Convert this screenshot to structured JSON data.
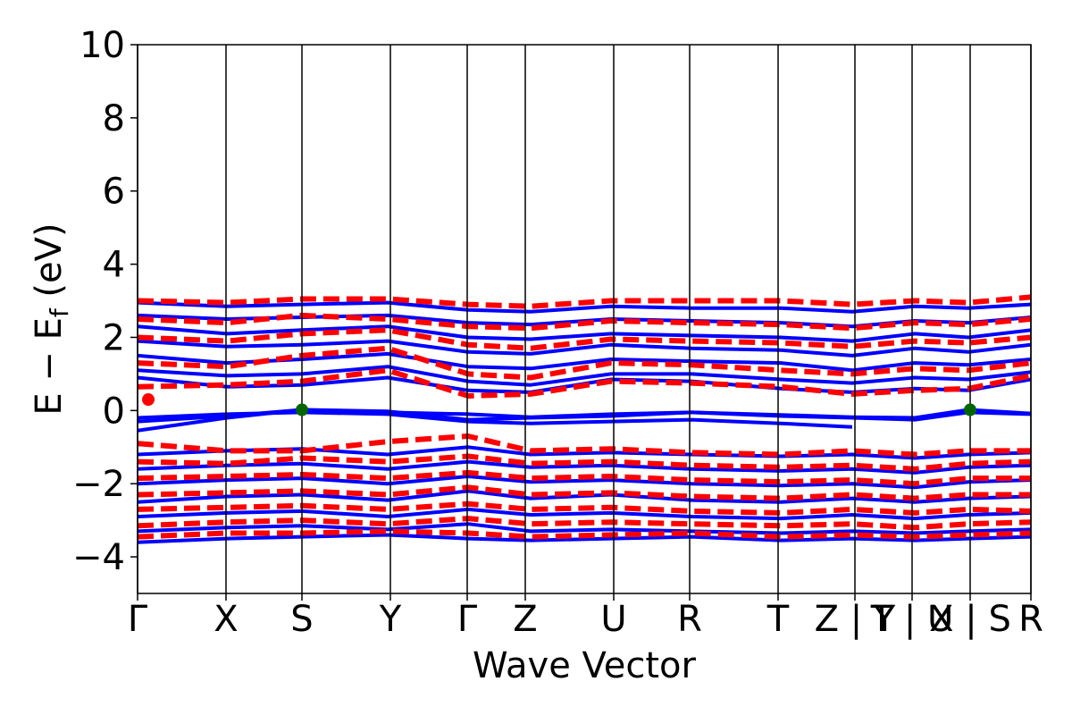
{
  "chart_data": {
    "type": "line",
    "title": "",
    "xlabel": "Wave Vector",
    "ylabel": {
      "main": "E − E",
      "subscript": "f",
      "unit": " (eV)"
    },
    "ylim": [
      -5,
      10
    ],
    "yticks": [
      -4,
      -2,
      0,
      2,
      4,
      6,
      8,
      10
    ],
    "ytick_labels": [
      "−4",
      "−2",
      "0",
      "2",
      "4",
      "6",
      "8",
      "10"
    ],
    "xlim": [
      0,
      1
    ],
    "kpoint_labels": [
      {
        "label": "Γ",
        "x": 0.0
      },
      {
        "label": "X",
        "x": 0.099
      },
      {
        "label": "S",
        "x": 0.184
      },
      {
        "label": "Y",
        "x": 0.283
      },
      {
        "label": "Γ",
        "x": 0.369
      },
      {
        "label": "Z",
        "x": 0.434
      },
      {
        "label": "U",
        "x": 0.533
      },
      {
        "label": "R",
        "x": 0.618
      },
      {
        "label": "T",
        "x": 0.717
      },
      {
        "label": "Z | Y",
        "x": 0.803
      },
      {
        "label": "T | U",
        "x": 0.867
      },
      {
        "label": "X | S",
        "x": 0.932
      },
      {
        "label": "R",
        "x": 1.0
      }
    ],
    "grid": false,
    "series": [
      {
        "style": "solid",
        "color": "#0000ff",
        "bands": [
          {
            "x": [
              0,
              0.1,
              0.184,
              0.28,
              0.37,
              0.44,
              0.53,
              0.62,
              0.72,
              0.8,
              0.87,
              0.93,
              1
            ],
            "y": [
              -0.55,
              -0.2,
              0.02,
              -0.05,
              -0.1,
              -0.18,
              -0.1,
              -0.05,
              -0.12,
              -0.18,
              -0.2,
              0.02,
              -0.08
            ]
          },
          {
            "x": [
              0,
              0.1,
              0.184,
              0.28,
              0.37,
              0.44,
              0.53,
              0.62,
              0.72,
              0.8,
              0.87,
              0.93,
              1
            ],
            "y": [
              -0.3,
              -0.15,
              0.02,
              -0.02,
              -0.25,
              -0.2,
              -0.15,
              -0.05,
              -0.15,
              -0.2,
              -0.25,
              -0.05,
              -0.1
            ]
          },
          {
            "x": [
              0,
              0.1,
              0.184,
              0.28,
              0.37,
              0.44,
              0.53,
              0.62,
              0.72,
              0.8
            ],
            "y": [
              -0.2,
              -0.1,
              -0.05,
              -0.1,
              -0.3,
              -0.35,
              -0.3,
              -0.25,
              -0.35,
              -0.45
            ]
          },
          {
            "x": [
              0,
              0.1,
              0.184,
              0.28,
              0.37,
              0.44,
              0.53,
              0.62,
              0.72,
              0.8,
              0.87,
              0.93,
              1
            ],
            "y": [
              0.9,
              0.65,
              0.7,
              0.9,
              0.55,
              0.5,
              0.85,
              0.8,
              0.6,
              0.5,
              0.6,
              0.55,
              0.85
            ]
          },
          {
            "x": [
              0,
              0.1,
              0.184,
              0.28,
              0.37,
              0.44,
              0.53,
              0.62,
              0.72,
              0.8,
              0.87,
              0.93,
              1
            ],
            "y": [
              1.1,
              0.95,
              1.0,
              1.2,
              0.8,
              0.7,
              1.0,
              1.0,
              0.85,
              0.75,
              0.9,
              0.85,
              1.05
            ]
          },
          {
            "x": [
              0,
              0.1,
              0.184,
              0.28,
              0.37,
              0.44,
              0.53,
              0.62,
              0.72,
              0.8,
              0.87,
              0.93,
              1
            ],
            "y": [
              1.5,
              1.3,
              1.4,
              1.55,
              1.2,
              1.15,
              1.4,
              1.35,
              1.3,
              1.1,
              1.3,
              1.25,
              1.4
            ]
          },
          {
            "x": [
              0,
              0.1,
              0.184,
              0.28,
              0.37,
              0.44,
              0.53,
              0.62,
              0.72,
              0.8,
              0.87,
              0.93,
              1
            ],
            "y": [
              1.9,
              1.75,
              1.8,
              1.9,
              1.6,
              1.55,
              1.8,
              1.7,
              1.65,
              1.5,
              1.7,
              1.6,
              1.8
            ]
          },
          {
            "x": [
              0,
              0.1,
              0.184,
              0.28,
              0.37,
              0.44,
              0.53,
              0.62,
              0.72,
              0.8,
              0.87,
              0.93,
              1
            ],
            "y": [
              2.3,
              2.1,
              2.2,
              2.3,
              2.0,
              1.95,
              2.1,
              2.05,
              2.0,
              1.9,
              2.1,
              2.0,
              2.2
            ]
          },
          {
            "x": [
              0,
              0.1,
              0.184,
              0.28,
              0.37,
              0.44,
              0.53,
              0.62,
              0.72,
              0.8,
              0.87,
              0.93,
              1
            ],
            "y": [
              2.6,
              2.5,
              2.55,
              2.6,
              2.4,
              2.35,
              2.5,
              2.45,
              2.4,
              2.3,
              2.45,
              2.4,
              2.55
            ]
          },
          {
            "x": [
              0,
              0.1,
              0.184,
              0.28,
              0.37,
              0.44,
              0.53,
              0.62,
              0.72,
              0.8,
              0.87,
              0.93,
              1
            ],
            "y": [
              2.95,
              2.85,
              2.9,
              2.95,
              2.75,
              2.7,
              2.85,
              2.8,
              2.8,
              2.7,
              2.85,
              2.8,
              2.9
            ]
          },
          {
            "x": [
              0,
              0.1,
              0.184,
              0.28,
              0.37,
              0.44,
              0.53,
              0.62,
              0.72,
              0.8,
              0.87,
              0.93,
              1
            ],
            "y": [
              -1.2,
              -1.1,
              -1.05,
              -1.2,
              -1.0,
              -1.2,
              -1.15,
              -1.2,
              -1.25,
              -1.2,
              -1.3,
              -1.2,
              -1.15
            ]
          },
          {
            "x": [
              0,
              0.1,
              0.184,
              0.28,
              0.37,
              0.44,
              0.53,
              0.62,
              0.72,
              0.8,
              0.87,
              0.93,
              1
            ],
            "y": [
              -1.6,
              -1.5,
              -1.45,
              -1.6,
              -1.4,
              -1.55,
              -1.5,
              -1.6,
              -1.65,
              -1.6,
              -1.7,
              -1.55,
              -1.5
            ]
          },
          {
            "x": [
              0,
              0.1,
              0.184,
              0.28,
              0.37,
              0.44,
              0.53,
              0.62,
              0.72,
              0.8,
              0.87,
              0.93,
              1
            ],
            "y": [
              -2.0,
              -1.9,
              -1.85,
              -2.0,
              -1.8,
              -1.95,
              -1.9,
              -2.0,
              -2.05,
              -2.0,
              -2.1,
              -1.95,
              -1.9
            ]
          },
          {
            "x": [
              0,
              0.1,
              0.184,
              0.28,
              0.37,
              0.44,
              0.53,
              0.62,
              0.72,
              0.8,
              0.87,
              0.93,
              1
            ],
            "y": [
              -2.5,
              -2.35,
              -2.3,
              -2.45,
              -2.2,
              -2.4,
              -2.3,
              -2.45,
              -2.5,
              -2.4,
              -2.5,
              -2.4,
              -2.35
            ]
          },
          {
            "x": [
              0,
              0.1,
              0.184,
              0.28,
              0.37,
              0.44,
              0.53,
              0.62,
              0.72,
              0.8,
              0.87,
              0.93,
              1
            ],
            "y": [
              -2.9,
              -2.8,
              -2.75,
              -2.9,
              -2.7,
              -2.85,
              -2.8,
              -2.9,
              -2.95,
              -2.85,
              -2.95,
              -2.85,
              -2.8
            ]
          },
          {
            "x": [
              0,
              0.1,
              0.184,
              0.28,
              0.37,
              0.44,
              0.53,
              0.62,
              0.72,
              0.8,
              0.87,
              0.93,
              1
            ],
            "y": [
              -3.3,
              -3.2,
              -3.15,
              -3.25,
              -3.1,
              -3.3,
              -3.25,
              -3.3,
              -3.35,
              -3.3,
              -3.35,
              -3.3,
              -3.25
            ]
          },
          {
            "x": [
              0,
              0.1,
              0.184,
              0.28,
              0.37,
              0.44,
              0.53,
              0.62,
              0.72,
              0.8,
              0.87,
              0.93,
              1
            ],
            "y": [
              -3.6,
              -3.5,
              -3.45,
              -3.4,
              -3.5,
              -3.55,
              -3.5,
              -3.45,
              -3.55,
              -3.5,
              -3.55,
              -3.5,
              -3.45
            ]
          }
        ]
      },
      {
        "style": "dashed",
        "color": "#ff0000",
        "bands": [
          {
            "x": [
              0,
              0.1,
              0.184,
              0.28,
              0.37,
              0.44,
              0.53,
              0.62,
              0.72,
              0.8,
              0.87,
              0.93,
              1
            ],
            "y": [
              0.65,
              0.7,
              0.8,
              1.1,
              0.4,
              0.45,
              0.8,
              0.75,
              0.65,
              0.45,
              0.55,
              0.6,
              0.95
            ]
          },
          {
            "x": [
              0,
              0.1,
              0.184,
              0.28,
              0.37,
              0.44,
              0.53,
              0.62,
              0.72,
              0.8,
              0.87,
              0.93,
              1
            ],
            "y": [
              1.3,
              1.2,
              1.5,
              1.7,
              1.0,
              0.9,
              1.3,
              1.25,
              1.1,
              1.0,
              1.15,
              1.1,
              1.3
            ]
          },
          {
            "x": [
              0,
              0.1,
              0.184,
              0.28,
              0.37,
              0.44,
              0.53,
              0.62,
              0.72,
              0.8,
              0.87,
              0.93,
              1
            ],
            "y": [
              2.0,
              1.9,
              2.1,
              2.2,
              1.8,
              1.7,
              1.95,
              1.9,
              1.85,
              1.75,
              1.9,
              1.85,
              2.0
            ]
          },
          {
            "x": [
              0,
              0.1,
              0.184,
              0.28,
              0.37,
              0.44,
              0.53,
              0.62,
              0.72,
              0.8,
              0.87,
              0.93,
              1
            ],
            "y": [
              2.5,
              2.4,
              2.6,
              2.5,
              2.3,
              2.25,
              2.45,
              2.4,
              2.35,
              2.25,
              2.4,
              2.35,
              2.5
            ]
          },
          {
            "x": [
              0,
              0.1,
              0.184,
              0.28,
              0.37,
              0.44,
              0.53,
              0.62,
              0.72,
              0.8,
              0.87,
              0.93,
              1
            ],
            "y": [
              3.0,
              2.95,
              3.05,
              3.05,
              2.9,
              2.85,
              3.0,
              3.0,
              3.0,
              2.9,
              3.0,
              2.95,
              3.1
            ]
          },
          {
            "x": [
              0,
              0.1,
              0.184,
              0.28,
              0.37,
              0.44,
              0.53,
              0.62,
              0.72,
              0.8,
              0.87,
              0.93,
              1
            ],
            "y": [
              -0.9,
              -1.1,
              -1.1,
              -0.85,
              -0.7,
              -1.1,
              -1.05,
              -1.15,
              -1.2,
              -1.1,
              -1.2,
              -1.1,
              -1.1
            ]
          },
          {
            "x": [
              0,
              0.1,
              0.184,
              0.28,
              0.37,
              0.44,
              0.53,
              0.62,
              0.72,
              0.8,
              0.87,
              0.93,
              1
            ],
            "y": [
              -1.4,
              -1.45,
              -1.3,
              -1.4,
              -1.25,
              -1.45,
              -1.4,
              -1.5,
              -1.55,
              -1.5,
              -1.6,
              -1.45,
              -1.4
            ]
          },
          {
            "x": [
              0,
              0.1,
              0.184,
              0.28,
              0.37,
              0.44,
              0.53,
              0.62,
              0.72,
              0.8,
              0.87,
              0.93,
              1
            ],
            "y": [
              -1.85,
              -1.8,
              -1.75,
              -1.85,
              -1.7,
              -1.85,
              -1.8,
              -1.9,
              -1.95,
              -1.9,
              -2.0,
              -1.85,
              -1.85
            ]
          },
          {
            "x": [
              0,
              0.1,
              0.184,
              0.28,
              0.37,
              0.44,
              0.53,
              0.62,
              0.72,
              0.8,
              0.87,
              0.93,
              1
            ],
            "y": [
              -2.3,
              -2.25,
              -2.2,
              -2.3,
              -2.1,
              -2.3,
              -2.25,
              -2.35,
              -2.4,
              -2.3,
              -2.4,
              -2.3,
              -2.3
            ]
          },
          {
            "x": [
              0,
              0.1,
              0.184,
              0.28,
              0.37,
              0.44,
              0.53,
              0.62,
              0.72,
              0.8,
              0.87,
              0.93,
              1
            ],
            "y": [
              -2.7,
              -2.65,
              -2.6,
              -2.7,
              -2.55,
              -2.7,
              -2.65,
              -2.75,
              -2.8,
              -2.7,
              -2.8,
              -2.7,
              -2.75
            ]
          },
          {
            "x": [
              0,
              0.1,
              0.184,
              0.28,
              0.37,
              0.44,
              0.53,
              0.62,
              0.72,
              0.8,
              0.87,
              0.93,
              1
            ],
            "y": [
              -3.15,
              -3.05,
              -3.0,
              -3.1,
              -2.95,
              -3.1,
              -3.05,
              -3.1,
              -3.15,
              -3.1,
              -3.2,
              -3.1,
              -3.05
            ]
          },
          {
            "x": [
              0,
              0.1,
              0.184,
              0.28,
              0.37,
              0.44,
              0.53,
              0.62,
              0.72,
              0.8,
              0.87,
              0.93,
              1
            ],
            "y": [
              -3.45,
              -3.35,
              -3.35,
              -3.3,
              -3.35,
              -3.45,
              -3.4,
              -3.35,
              -3.45,
              -3.4,
              -3.45,
              -3.4,
              -3.35
            ]
          }
        ]
      }
    ],
    "markers": [
      {
        "x": 0.012,
        "y": 0.3,
        "color": "#ff0000"
      },
      {
        "x": 0.184,
        "y": 0.02,
        "color": "#006400"
      },
      {
        "x": 0.932,
        "y": 0.02,
        "color": "#006400"
      }
    ]
  }
}
